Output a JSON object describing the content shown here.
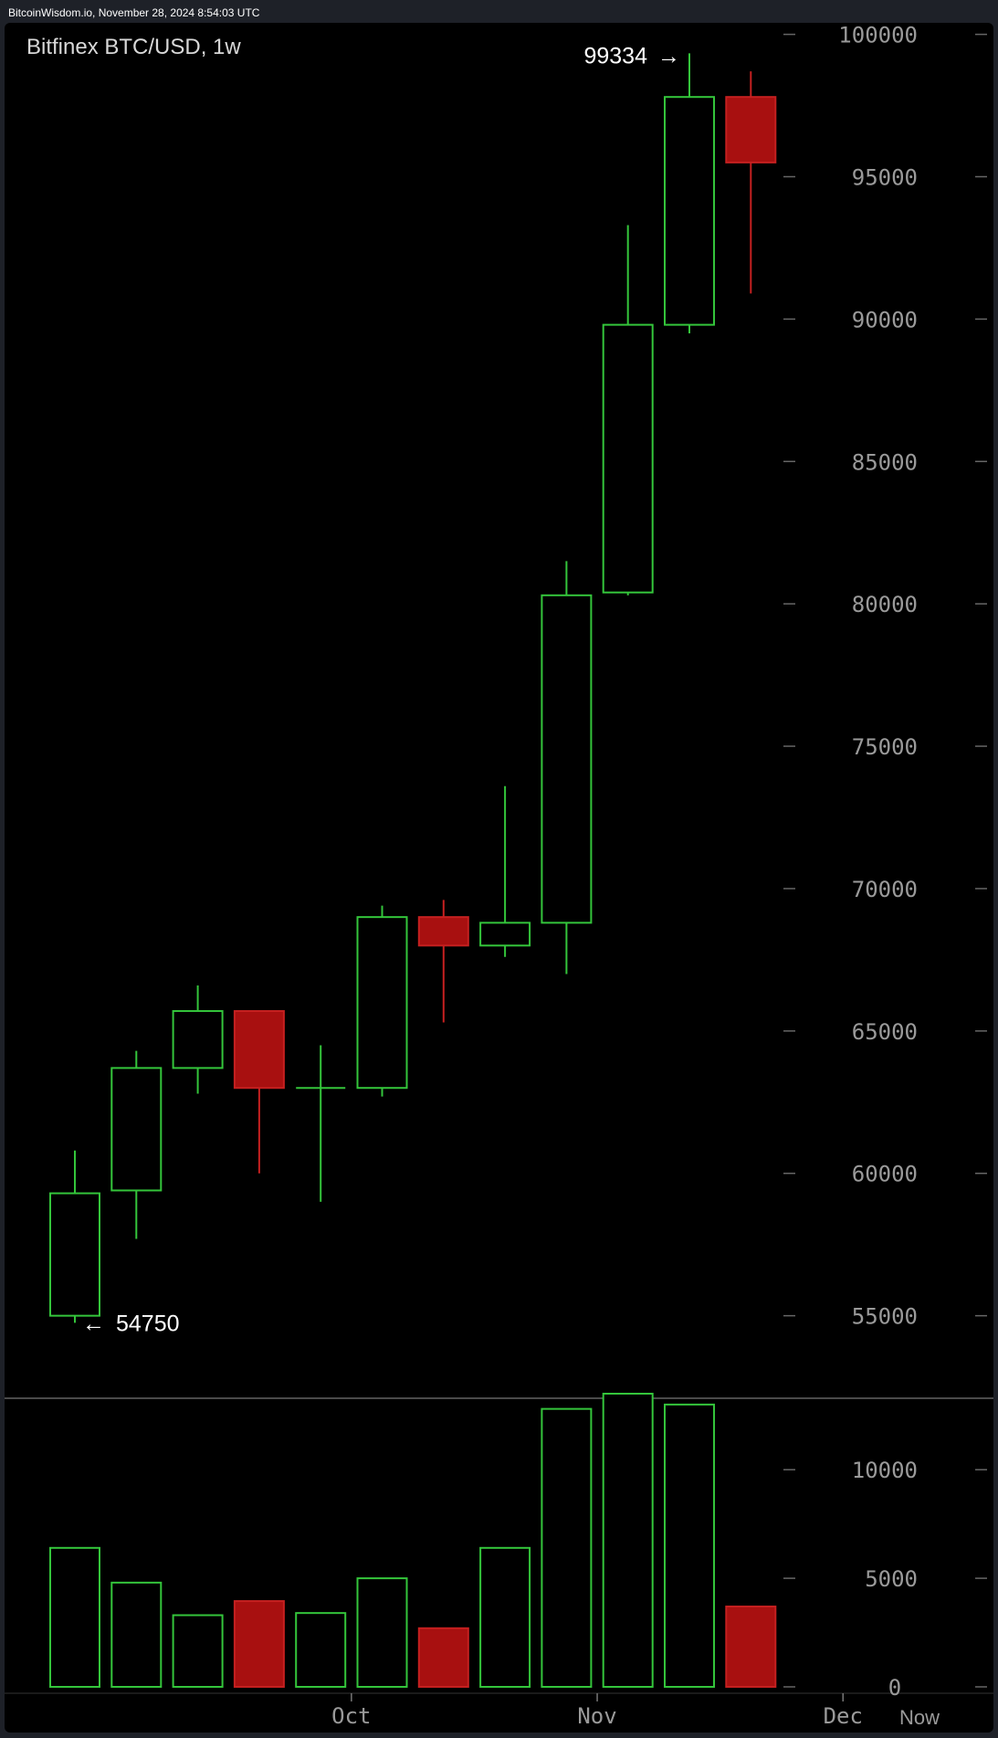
{
  "header": {
    "timestamp": "BitcoinWisdom.io, November 28, 2024 8:54:03 UTC"
  },
  "chart_data": {
    "type": "candlestick",
    "title": "Bitfinex BTC/USD, 1w",
    "colors": {
      "up": "#34c53b",
      "down": "#a81010",
      "down_stroke": "#c52020",
      "background": "#000000"
    },
    "price_axis": {
      "range": [
        53000,
        100500
      ],
      "ticks": [
        {
          "value": 100000,
          "label": "100000"
        },
        {
          "value": 95000,
          "label": "95000"
        },
        {
          "value": 90000,
          "label": "90000"
        },
        {
          "value": 85000,
          "label": "85000"
        },
        {
          "value": 80000,
          "label": "80000"
        },
        {
          "value": 75000,
          "label": "75000"
        },
        {
          "value": 70000,
          "label": "70000"
        },
        {
          "value": 65000,
          "label": "65000"
        },
        {
          "value": 60000,
          "label": "60000"
        },
        {
          "value": 55000,
          "label": "55000"
        }
      ]
    },
    "volume_axis": {
      "range": [
        0,
        13500
      ],
      "ticks": [
        {
          "value": 10000,
          "label": "10000"
        },
        {
          "value": 5000,
          "label": "5000"
        },
        {
          "value": 0,
          "label": "0"
        }
      ]
    },
    "x_labels": [
      {
        "label": "Oct",
        "index": 4.5
      },
      {
        "label": "Nov",
        "index": 8.5
      },
      {
        "label": "Dec",
        "index": 12.5
      }
    ],
    "now_label": "Now",
    "high_marker": {
      "value": 99334,
      "label": "99334",
      "arrow": "→",
      "index": 10
    },
    "low_marker": {
      "value": 54750,
      "label": "54750",
      "arrow": "←",
      "index": 0
    },
    "candles": [
      {
        "open": 55000,
        "close": 59300,
        "high": 60800,
        "low": 54750,
        "volume": 6400
      },
      {
        "open": 59400,
        "close": 63700,
        "high": 64300,
        "low": 57700,
        "volume": 4800
      },
      {
        "open": 63700,
        "close": 65700,
        "high": 66600,
        "low": 62800,
        "volume": 3300
      },
      {
        "open": 65700,
        "close": 63000,
        "high": 65700,
        "low": 60000,
        "volume": 3950
      },
      {
        "open": 63000,
        "close": 63000,
        "high": 64500,
        "low": 59000,
        "volume": 3400
      },
      {
        "open": 63000,
        "close": 69000,
        "high": 69400,
        "low": 62700,
        "volume": 5000
      },
      {
        "open": 69000,
        "close": 68000,
        "high": 69600,
        "low": 65300,
        "volume": 2700
      },
      {
        "open": 68000,
        "close": 68800,
        "high": 73600,
        "low": 67600,
        "volume": 6400
      },
      {
        "open": 68800,
        "close": 80300,
        "high": 81500,
        "low": 67000,
        "volume": 12800
      },
      {
        "open": 80400,
        "close": 89800,
        "high": 93300,
        "low": 80300,
        "volume": 13500
      },
      {
        "open": 89800,
        "close": 97800,
        "high": 99334,
        "low": 89500,
        "volume": 13000
      },
      {
        "open": 97800,
        "close": 95500,
        "high": 98700,
        "low": 90900,
        "volume": 3700
      }
    ]
  }
}
